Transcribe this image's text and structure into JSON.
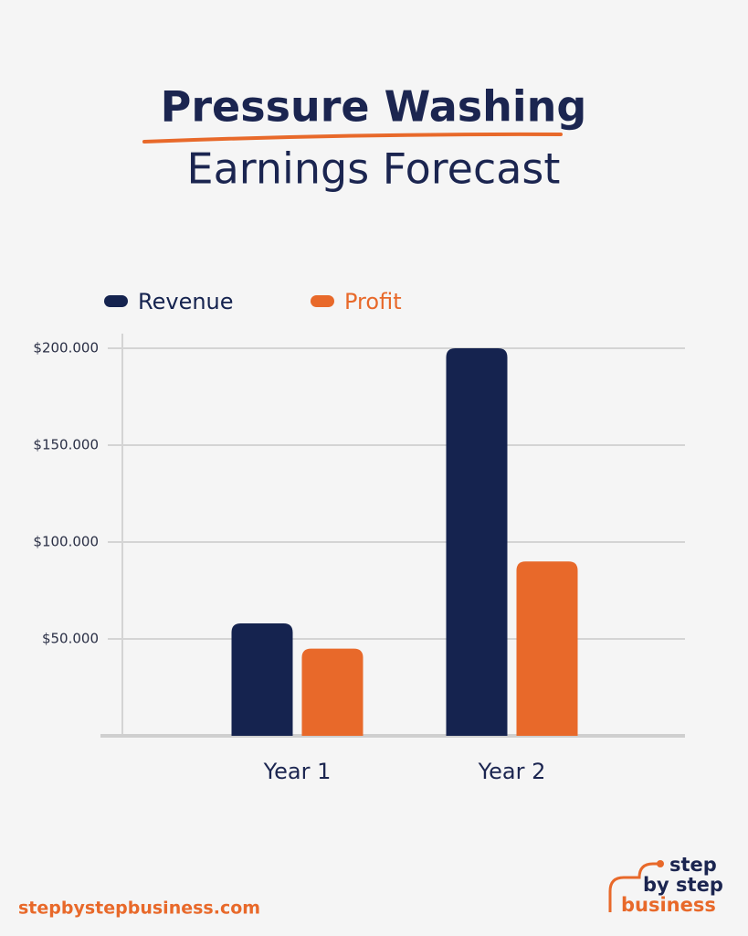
{
  "chart_data": {
    "type": "bar",
    "title": "Pressure Washing",
    "subtitle": "Earnings Forecast",
    "categories": [
      "Year 1",
      "Year 2"
    ],
    "series": [
      {
        "name": "Revenue",
        "color": "#15234f",
        "values": [
          58000,
          200000
        ]
      },
      {
        "name": "Profit",
        "color": "#e8692a",
        "values": [
          45000,
          90000
        ]
      }
    ],
    "ylim": [
      0,
      200000
    ],
    "yticks": [
      {
        "value": 50000,
        "label": "$50.000"
      },
      {
        "value": 100000,
        "label": "$100.000"
      },
      {
        "value": 150000,
        "label": "$150.000"
      },
      {
        "value": 200000,
        "label": "$200.000"
      }
    ],
    "grid": true
  },
  "footer": {
    "url": "stepbystepbusiness.com",
    "logo": [
      "step",
      "by step",
      "business"
    ]
  }
}
